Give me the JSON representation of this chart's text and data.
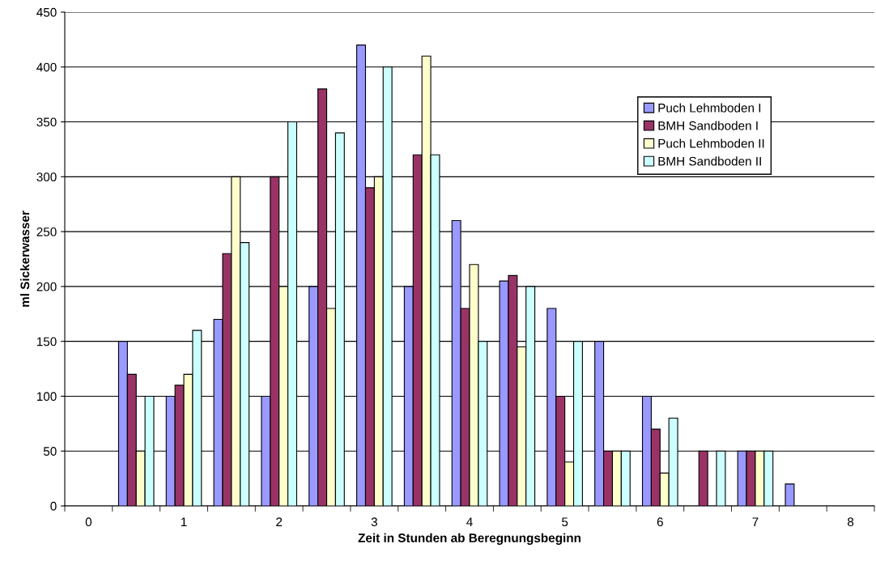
{
  "chart_data": {
    "type": "bar",
    "xlabel": "Zeit in Stunden ab Beregnungsbeginn",
    "ylabel": "ml Sickerwasser",
    "categories": [
      "0",
      null,
      "1",
      null,
      "2",
      null,
      "3",
      null,
      "4",
      null,
      "5",
      null,
      "6",
      null,
      "7",
      null,
      "8"
    ],
    "series": [
      {
        "name": "Puch Lehmboden I",
        "color": "#9999ff",
        "values": [
          null,
          150,
          100,
          170,
          100,
          200,
          420,
          200,
          260,
          205,
          180,
          150,
          100,
          null,
          50,
          20,
          null
        ]
      },
      {
        "name": "BMH Sandboden I",
        "color": "#993366",
        "values": [
          null,
          120,
          110,
          230,
          300,
          380,
          290,
          320,
          180,
          210,
          100,
          50,
          70,
          50,
          50,
          null,
          null
        ]
      },
      {
        "name": "Puch Lehmboden II",
        "color": "#ffffcc",
        "values": [
          null,
          50,
          120,
          300,
          200,
          180,
          300,
          410,
          220,
          145,
          40,
          50,
          30,
          null,
          50,
          null,
          null
        ]
      },
      {
        "name": "BMH Sandboden II",
        "color": "#ccffff",
        "values": [
          null,
          100,
          160,
          240,
          350,
          340,
          400,
          320,
          150,
          200,
          150,
          50,
          80,
          50,
          50,
          null,
          null
        ]
      }
    ],
    "ylim": [
      0,
      450
    ],
    "yticks": [
      0,
      50,
      100,
      150,
      200,
      250,
      300,
      350,
      400,
      450
    ],
    "grid": "y",
    "legend": "right"
  }
}
